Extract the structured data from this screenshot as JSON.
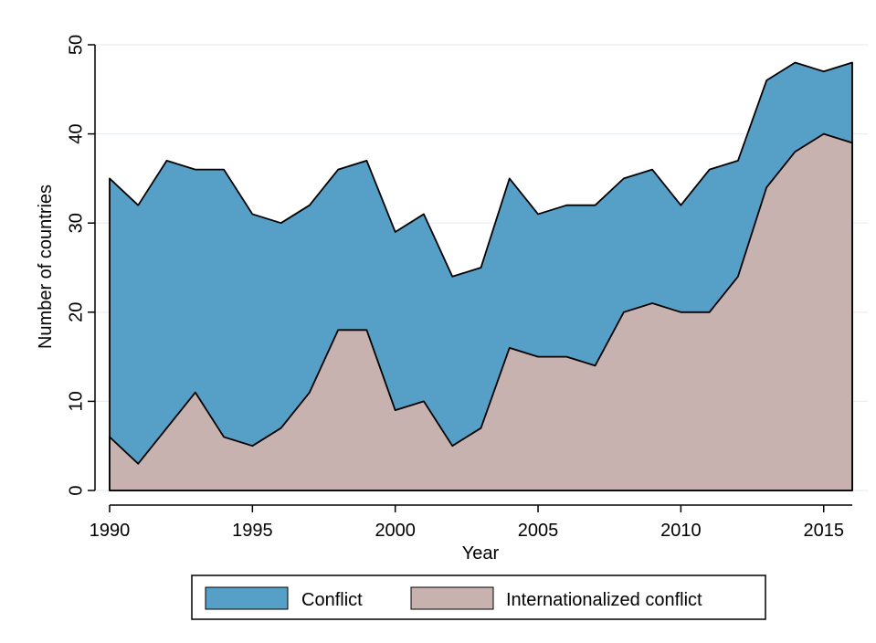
{
  "chart_data": {
    "type": "area",
    "stacked": false,
    "xlabel": "Year",
    "ylabel": "Number of countries",
    "xlim": [
      1990,
      2016
    ],
    "ylim": [
      0,
      50
    ],
    "x_ticks": [
      1990,
      1995,
      2000,
      2005,
      2010,
      2015
    ],
    "y_ticks": [
      0,
      10,
      20,
      30,
      40,
      50
    ],
    "grid": true,
    "legend_position": "bottom",
    "x": [
      1990,
      1991,
      1992,
      1993,
      1994,
      1995,
      1996,
      1997,
      1998,
      1999,
      2000,
      2001,
      2002,
      2003,
      2004,
      2005,
      2006,
      2007,
      2008,
      2009,
      2010,
      2011,
      2012,
      2013,
      2014,
      2015,
      2016
    ],
    "series": [
      {
        "name": "Conflict",
        "color": "#56a0c8",
        "values": [
          35,
          32,
          37,
          36,
          36,
          31,
          30,
          32,
          36,
          37,
          29,
          31,
          24,
          25,
          35,
          31,
          32,
          32,
          35,
          36,
          32,
          36,
          37,
          46,
          48,
          47,
          48
        ]
      },
      {
        "name": "Internationalized conflict",
        "color": "#c7b2b0",
        "values": [
          6,
          3,
          7,
          11,
          6,
          5,
          7,
          11,
          18,
          18,
          9,
          10,
          5,
          7,
          16,
          15,
          15,
          14,
          20,
          21,
          20,
          20,
          24,
          34,
          38,
          40,
          39
        ]
      }
    ]
  }
}
